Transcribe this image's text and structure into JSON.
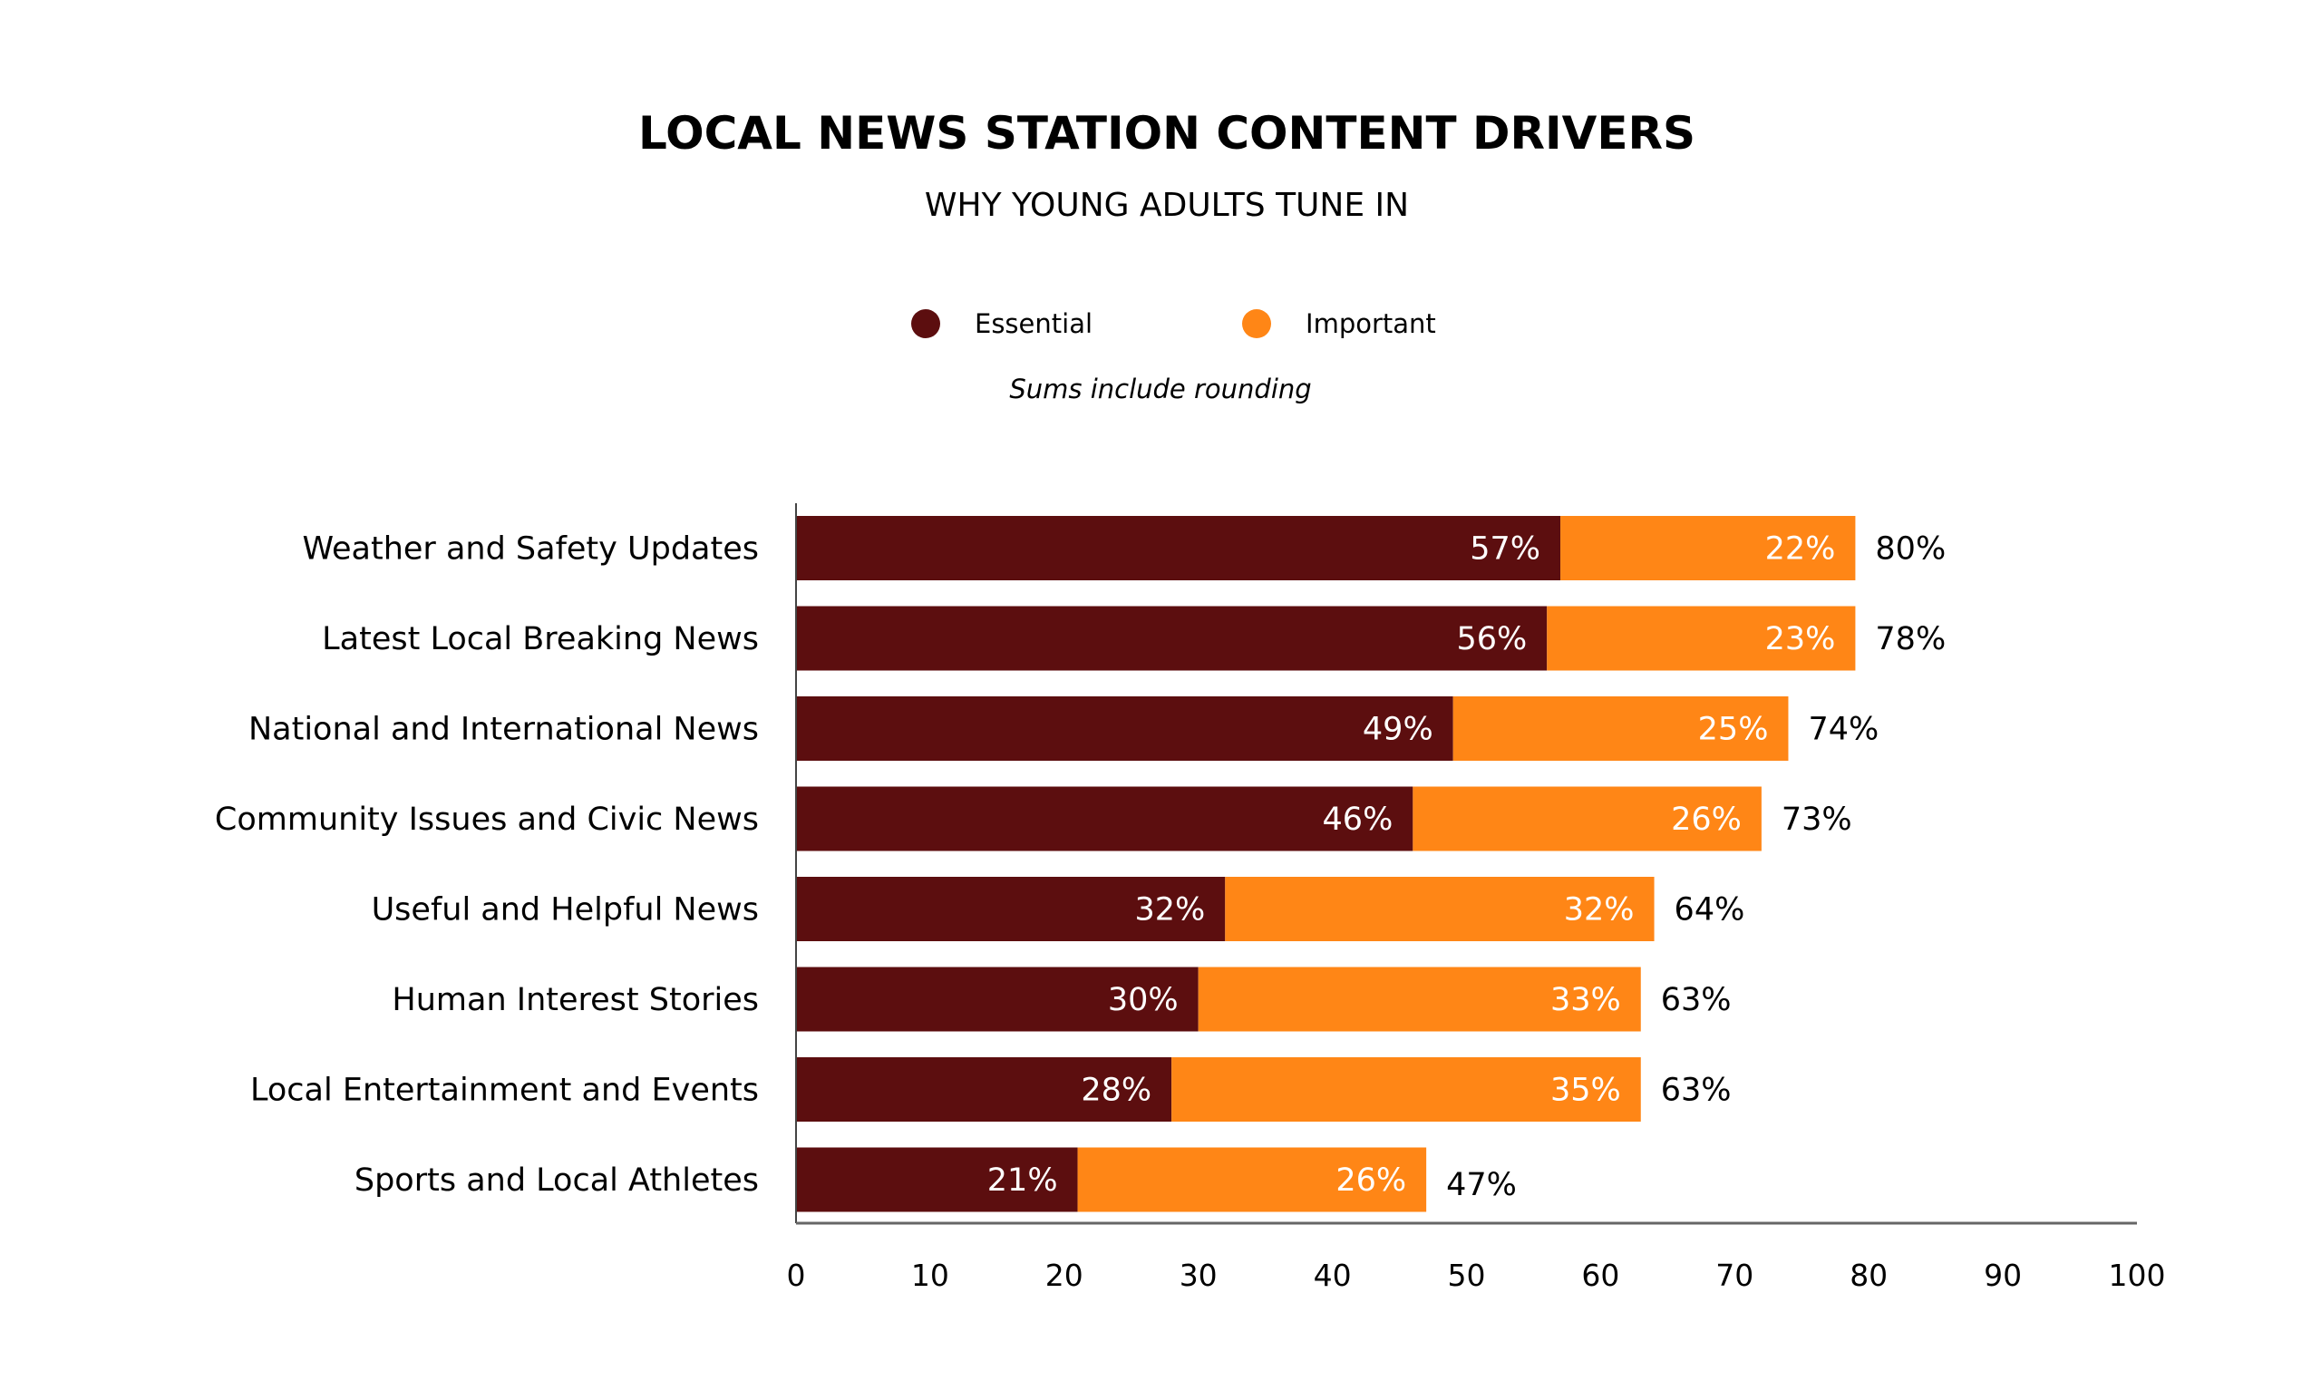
{
  "chart_data": {
    "type": "bar",
    "orientation": "horizontal",
    "stacked": true,
    "title": "LOCAL NEWS STATION CONTENT DRIVERS",
    "subtitle": "WHY YOUNG ADULTS TUNE IN",
    "note": "Sums include rounding",
    "legend_position": "top",
    "categories": [
      "Weather and Safety Updates",
      "Latest Local Breaking News",
      "National and International News",
      "Community Issues and Civic News",
      "Useful and Helpful News",
      "Human Interest Stories",
      "Local Entertainment and Events",
      "Sports and Local Athletes"
    ],
    "series": [
      {
        "name": "Essential",
        "color": "#5c0e0f",
        "values": [
          57,
          56,
          49,
          46,
          32,
          30,
          28,
          21
        ]
      },
      {
        "name": "Important",
        "color": "#ff8616",
        "values": [
          22,
          23,
          25,
          26,
          32,
          33,
          35,
          26
        ]
      }
    ],
    "totals": [
      80,
      78,
      74,
      73,
      64,
      63,
      63,
      47
    ],
    "value_suffix": "%",
    "xlim": [
      0,
      100
    ],
    "xticks": [
      0,
      10,
      20,
      30,
      40,
      50,
      60,
      70,
      80,
      90,
      100
    ],
    "grid": false
  }
}
